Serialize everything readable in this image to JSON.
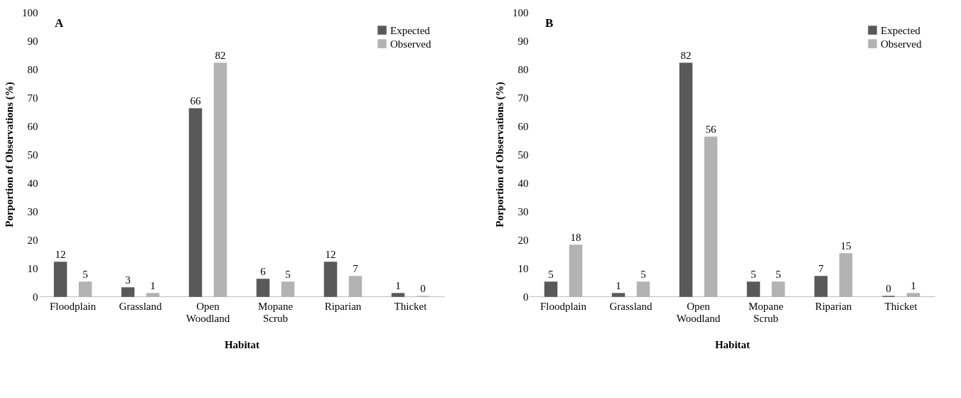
{
  "chart_data": [
    {
      "type": "bar",
      "title": "A",
      "xlabel": "Habitat",
      "ylabel": "Porportion of Observations (%)",
      "categories": [
        "Floodplain",
        "Grassland",
        "Open Woodland",
        "Mopane Scrub",
        "Riparian",
        "Thicket"
      ],
      "series": [
        {
          "name": "Expected",
          "color": "#595959",
          "values": [
            12,
            3,
            66,
            6,
            12,
            1
          ]
        },
        {
          "name": "Observed",
          "color": "#b3b3b3",
          "values": [
            5,
            1,
            82,
            5,
            7,
            0
          ]
        }
      ],
      "ylim": [
        0,
        100
      ],
      "yticks": [
        0,
        10,
        20,
        30,
        40,
        50,
        60,
        70,
        80,
        90,
        100
      ],
      "grid": false,
      "legend": "top right",
      "data_labels": true
    },
    {
      "type": "bar",
      "title": "B",
      "xlabel": "Habitat",
      "ylabel": "Porportion of Observations (%)",
      "categories": [
        "Floodplain",
        "Grassland",
        "Open Woodland",
        "Mopane Scrub",
        "Riparian",
        "Thicket"
      ],
      "series": [
        {
          "name": "Expected",
          "color": "#595959",
          "values": [
            5,
            1,
            82,
            5,
            7,
            0
          ]
        },
        {
          "name": "Observed",
          "color": "#b3b3b3",
          "values": [
            18,
            5,
            56,
            5,
            15,
            1
          ]
        }
      ],
      "ylim": [
        0,
        100
      ],
      "yticks": [
        0,
        10,
        20,
        30,
        40,
        50,
        60,
        70,
        80,
        90,
        100
      ],
      "grid": false,
      "legend": "top right",
      "data_labels": true
    }
  ]
}
